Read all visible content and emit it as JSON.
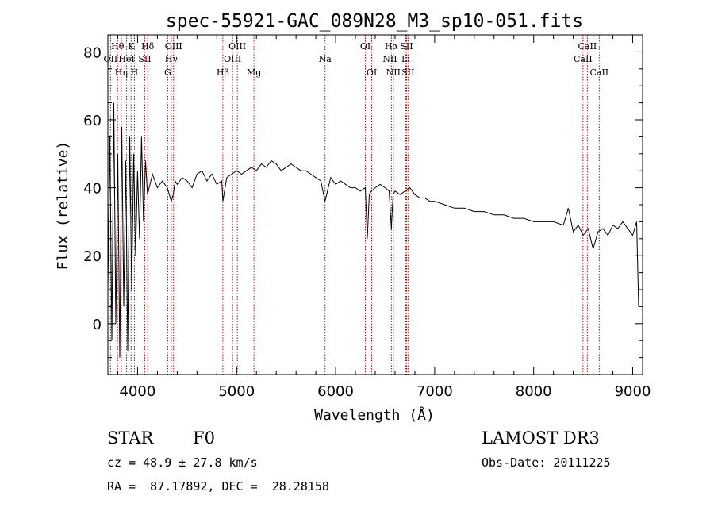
{
  "chart_data": {
    "type": "line",
    "title": "spec-55921-GAC_089N28_M3_sp10-051.fits",
    "xlabel": "Wavelength (Å)",
    "ylabel": "Flux (relative)",
    "xlim": [
      3700,
      9100
    ],
    "ylim": [
      -15,
      85
    ],
    "x_ticks": [
      4000,
      5000,
      6000,
      7000,
      8000,
      9000
    ],
    "y_ticks": [
      0,
      20,
      40,
      60,
      80
    ],
    "series": [
      {
        "name": "flux",
        "x": [
          3700,
          3720,
          3740,
          3760,
          3780,
          3800,
          3820,
          3840,
          3860,
          3880,
          3900,
          3920,
          3940,
          3960,
          3980,
          4000,
          4020,
          4040,
          4060,
          4080,
          4100,
          4150,
          4200,
          4250,
          4300,
          4340,
          4360,
          4380,
          4400,
          4450,
          4500,
          4550,
          4600,
          4650,
          4700,
          4750,
          4800,
          4850,
          4861,
          4900,
          4950,
          5000,
          5050,
          5100,
          5150,
          5200,
          5250,
          5300,
          5350,
          5400,
          5450,
          5500,
          5550,
          5600,
          5650,
          5700,
          5750,
          5800,
          5850,
          5893,
          5950,
          6000,
          6050,
          6100,
          6150,
          6200,
          6250,
          6300,
          6320,
          6340,
          6360,
          6400,
          6450,
          6500,
          6540,
          6563,
          6580,
          6600,
          6650,
          6700,
          6750,
          6800,
          6850,
          6900,
          6950,
          7000,
          7100,
          7200,
          7300,
          7400,
          7500,
          7600,
          7700,
          7800,
          7900,
          8000,
          8100,
          8200,
          8300,
          8350,
          8400,
          8450,
          8500,
          8550,
          8600,
          8650,
          8700,
          8750,
          8800,
          8850,
          8900,
          8950,
          9000,
          9040,
          9060
        ],
        "values": [
          10,
          55,
          -5,
          65,
          0,
          50,
          -10,
          58,
          5,
          48,
          -8,
          55,
          10,
          50,
          20,
          45,
          25,
          55,
          30,
          48,
          38,
          44,
          40,
          42,
          40,
          36,
          38,
          42,
          41,
          43,
          42,
          40,
          44,
          45,
          42,
          44,
          41,
          42,
          36,
          43,
          44,
          45,
          44,
          45,
          46,
          45,
          47,
          46,
          48,
          47,
          45,
          46,
          47,
          46,
          45,
          45,
          44,
          43,
          42,
          36,
          43,
          41,
          42,
          41,
          40,
          40,
          39,
          40,
          25,
          38,
          39,
          40,
          41,
          40,
          39,
          28,
          38,
          39,
          38,
          39,
          40,
          38,
          37,
          37,
          36,
          36,
          35,
          34,
          34,
          33,
          33,
          32,
          32,
          31,
          31,
          30,
          30,
          30,
          29,
          34,
          27,
          29,
          26,
          28,
          22,
          27,
          28,
          26,
          29,
          28,
          30,
          28,
          26,
          30,
          5
        ]
      }
    ],
    "lines": [
      {
        "label": "OII",
        "x": 3727,
        "row": 1
      },
      {
        "label": "Hθ",
        "x": 3798,
        "row": 0
      },
      {
        "label": "Hη",
        "x": 3835,
        "row": 2
      },
      {
        "label": "HeI",
        "x": 3889,
        "row": 1
      },
      {
        "label": "K",
        "x": 3934,
        "row": 0
      },
      {
        "label": "H",
        "x": 3968,
        "row": 2
      },
      {
        "label": "SII",
        "x": 4072,
        "row": 1
      },
      {
        "label": "Hδ",
        "x": 4102,
        "row": 0
      },
      {
        "label": "G",
        "x": 4304,
        "row": 2
      },
      {
        "label": "Hγ",
        "x": 4340,
        "row": 1
      },
      {
        "label": "OIII",
        "x": 4363,
        "row": 0
      },
      {
        "label": "Hβ",
        "x": 4861,
        "row": 2
      },
      {
        "label": "OIII",
        "x": 4959,
        "row": 1
      },
      {
        "label": "OIII",
        "x": 5007,
        "row": 0
      },
      {
        "label": "Mg",
        "x": 5175,
        "row": 2
      },
      {
        "label": "Na",
        "x": 5893,
        "row": 1
      },
      {
        "label": "OI",
        "x": 6300,
        "row": 0
      },
      {
        "label": "OI",
        "x": 6364,
        "row": 2
      },
      {
        "label": "NII",
        "x": 6548,
        "row": 1
      },
      {
        "label": "Hα",
        "x": 6563,
        "row": 0
      },
      {
        "label": "NII",
        "x": 6583,
        "row": 2
      },
      {
        "label": "Li",
        "x": 6708,
        "row": 1
      },
      {
        "label": "SII",
        "x": 6716,
        "row": 0
      },
      {
        "label": "SII",
        "x": 6731,
        "row": 2
      },
      {
        "label": "CaII",
        "x": 8498,
        "row": 1
      },
      {
        "label": "CaII",
        "x": 8542,
        "row": 0
      },
      {
        "label": "CaII",
        "x": 8662,
        "row": 2
      }
    ]
  },
  "info": {
    "class": "STAR",
    "subclass": "F0",
    "survey": "LAMOST DR3",
    "cz": "cz = 48.9 ± 27.8 km/s",
    "obs_date": "Obs-Date: 20111225",
    "coords": "RA =  87.17892, DEC =  28.28158"
  }
}
